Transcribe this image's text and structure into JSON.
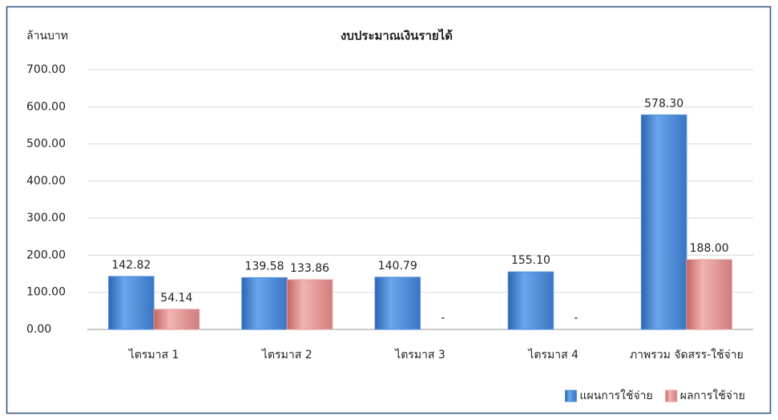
{
  "chart_data": {
    "type": "bar",
    "title": "งบประมาณเงินรายได้",
    "y_label": "ล้านบาท",
    "categories": [
      "ไตรมาส 1",
      "ไตรมาส 2",
      "ไตรมาส 3",
      "ไตรมาส 4",
      "ภาพรวม จัดสรร-ใช้จ่าย"
    ],
    "series": [
      {
        "name": "แผนการใช้จ่าย",
        "color": "#4f8fdc",
        "values": [
          142.82,
          139.58,
          140.79,
          155.1,
          578.3
        ],
        "value_labels": [
          "142.82",
          "139.58",
          "140.79",
          "155.10",
          "578.30"
        ]
      },
      {
        "name": "ผลการใช้จ่าย",
        "color": "#e39a99",
        "values": [
          54.14,
          133.86,
          null,
          null,
          188.0
        ],
        "value_labels": [
          "54.14",
          "133.86",
          "-",
          "-",
          "188.00"
        ]
      }
    ],
    "ylim": [
      0,
      700
    ],
    "yticks": [
      {
        "value": 0,
        "label": "0.00"
      },
      {
        "value": 100,
        "label": "100.00"
      },
      {
        "value": 200,
        "label": "200.00"
      },
      {
        "value": 300,
        "label": "300.00"
      },
      {
        "value": 400,
        "label": "400.00"
      },
      {
        "value": 500,
        "label": "500.00"
      },
      {
        "value": 600,
        "label": "600.00"
      },
      {
        "value": 700,
        "label": "700.00"
      }
    ],
    "grid": true,
    "legend": "bottom-right"
  }
}
